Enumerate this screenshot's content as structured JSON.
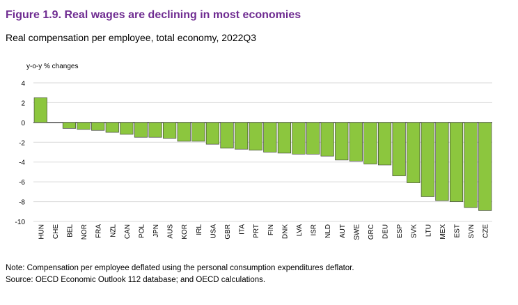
{
  "chart_data": {
    "type": "bar",
    "title": "Figure 1.9. Real wages are declining in most economies",
    "subtitle": "Real compensation per employee, total economy, 2022Q3",
    "y_label": "y-o-y % changes",
    "notes": [
      "Note: Compensation per employee deflated using the personal consumption expenditures deflator.",
      "Source: OECD Economic Outlook 112 database; and OECD calculations."
    ],
    "categories": [
      "HUN",
      "CHE",
      "BEL",
      "NOR",
      "FRA",
      "NZL",
      "CAN",
      "POL",
      "JPN",
      "AUS",
      "KOR",
      "IRL",
      "USA",
      "GBR",
      "ITA",
      "PRT",
      "FIN",
      "DNK",
      "LVA",
      "ISR",
      "NLD",
      "AUT",
      "SWE",
      "GRC",
      "DEU",
      "ESP",
      "SVK",
      "LTU",
      "MEX",
      "EST",
      "SVN",
      "CZE"
    ],
    "values": [
      2.5,
      0,
      -0.6,
      -0.7,
      -0.8,
      -1.0,
      -1.2,
      -1.5,
      -1.5,
      -1.6,
      -1.9,
      -1.9,
      -2.2,
      -2.6,
      -2.7,
      -2.8,
      -3.0,
      -3.1,
      -3.2,
      -3.2,
      -3.4,
      -3.8,
      -3.9,
      -4.2,
      -4.3,
      -5.4,
      -6.1,
      -7.5,
      -7.9,
      -8.0,
      -8.6,
      -8.9
    ],
    "color": "#8cc63e",
    "ylim": [
      -10,
      4
    ],
    "yticks": [
      4,
      2,
      0,
      -2,
      -4,
      -6,
      -8,
      -10
    ],
    "grid": true
  }
}
